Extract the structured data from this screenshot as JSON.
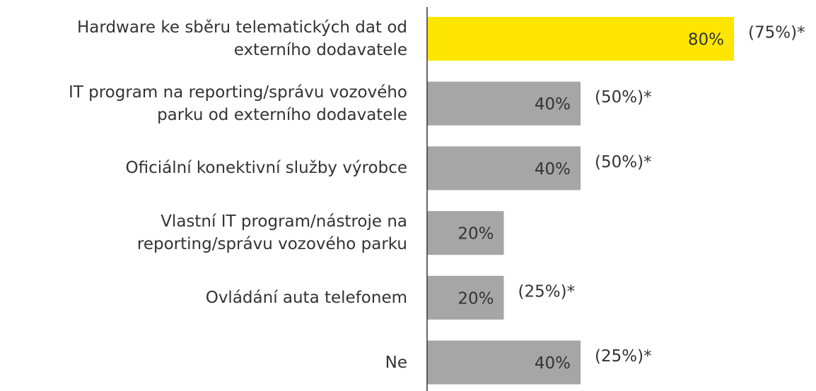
{
  "chart_data": {
    "type": "barh",
    "categories": [
      "Hardware ke sběru telematických dat od\nexterního dodavatele",
      "IT program na reporting/správu vozového\nparku od externího dodavatele",
      "Oficiální konektivní služby výrobce",
      "Vlastní IT program/nástroje na\nreporting/správu vozového parku",
      "Ovládání auta telefonem",
      "Ne"
    ],
    "values": [
      80,
      40,
      40,
      20,
      20,
      40
    ],
    "value_labels": [
      "80%",
      "40%",
      "40%",
      "20%",
      "20%",
      "40%"
    ],
    "annotations": [
      "(75%)*",
      "(50%)*",
      "(50%)*",
      null,
      "(25%)*",
      "(25%)*"
    ],
    "colors": [
      "#ffe600",
      "#a6a6a6",
      "#a6a6a6",
      "#a6a6a6",
      "#a6a6a6",
      "#a6a6a6"
    ],
    "xlim": [
      0,
      80
    ]
  }
}
